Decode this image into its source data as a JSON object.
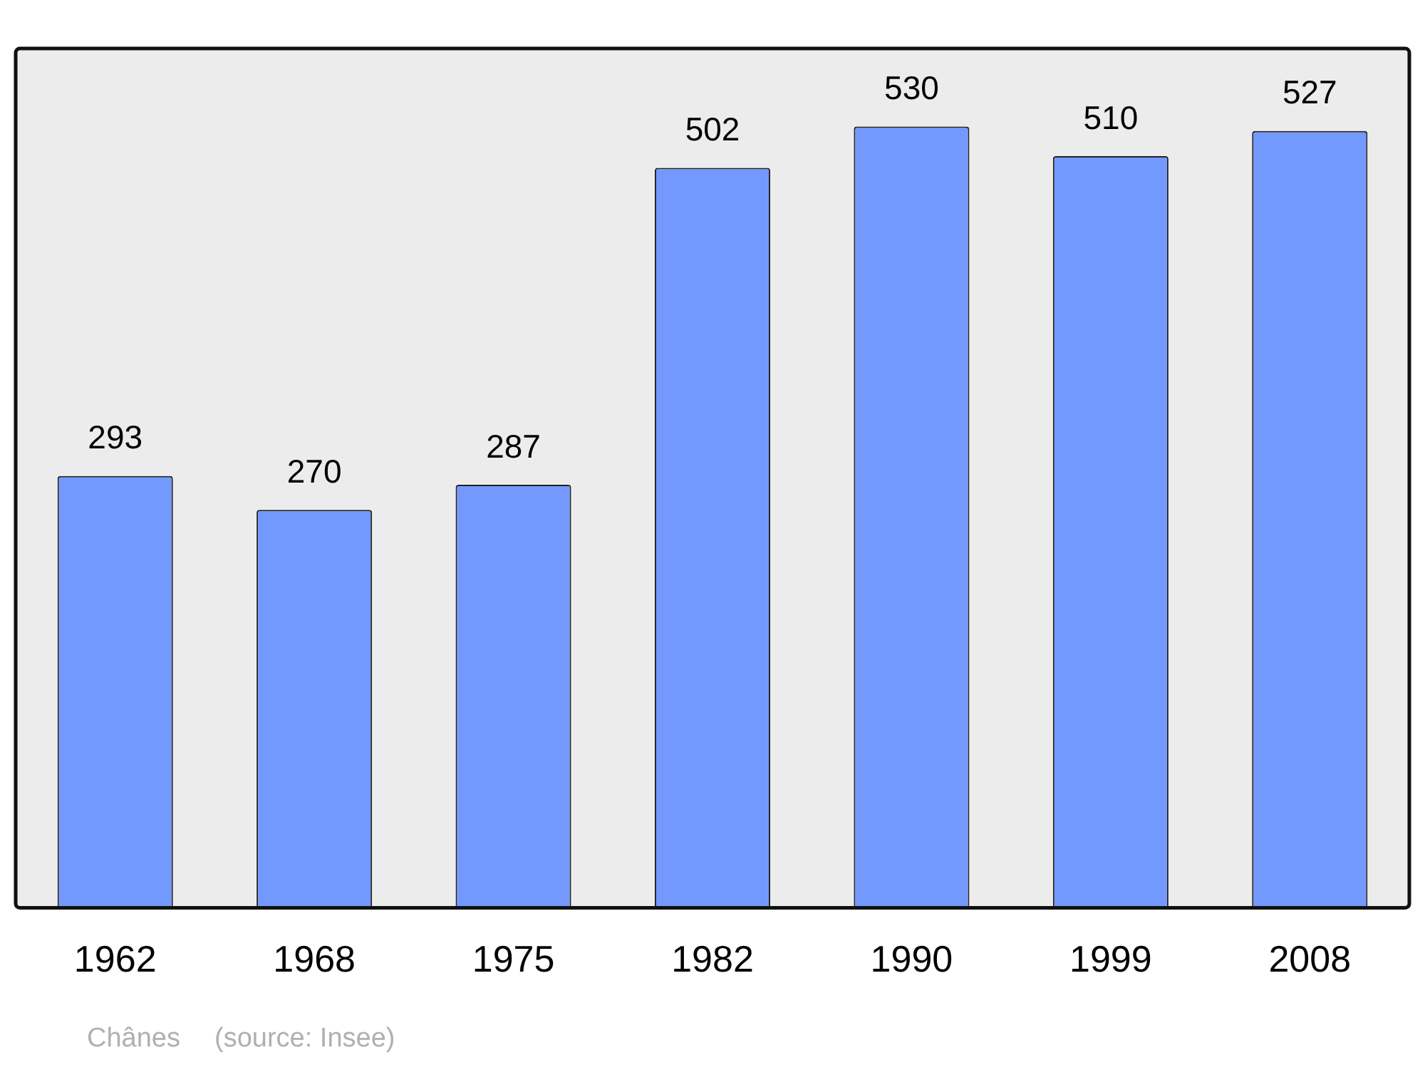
{
  "chart_data": {
    "type": "bar",
    "categories": [
      "1962",
      "1968",
      "1975",
      "1982",
      "1990",
      "1999",
      "2008"
    ],
    "values": [
      293,
      270,
      287,
      502,
      530,
      510,
      527
    ],
    "color": "#7399ff",
    "data_labels": true,
    "grid": false,
    "legend": false,
    "annotations": [
      "Chânes",
      "(source: Insee)"
    ]
  }
}
